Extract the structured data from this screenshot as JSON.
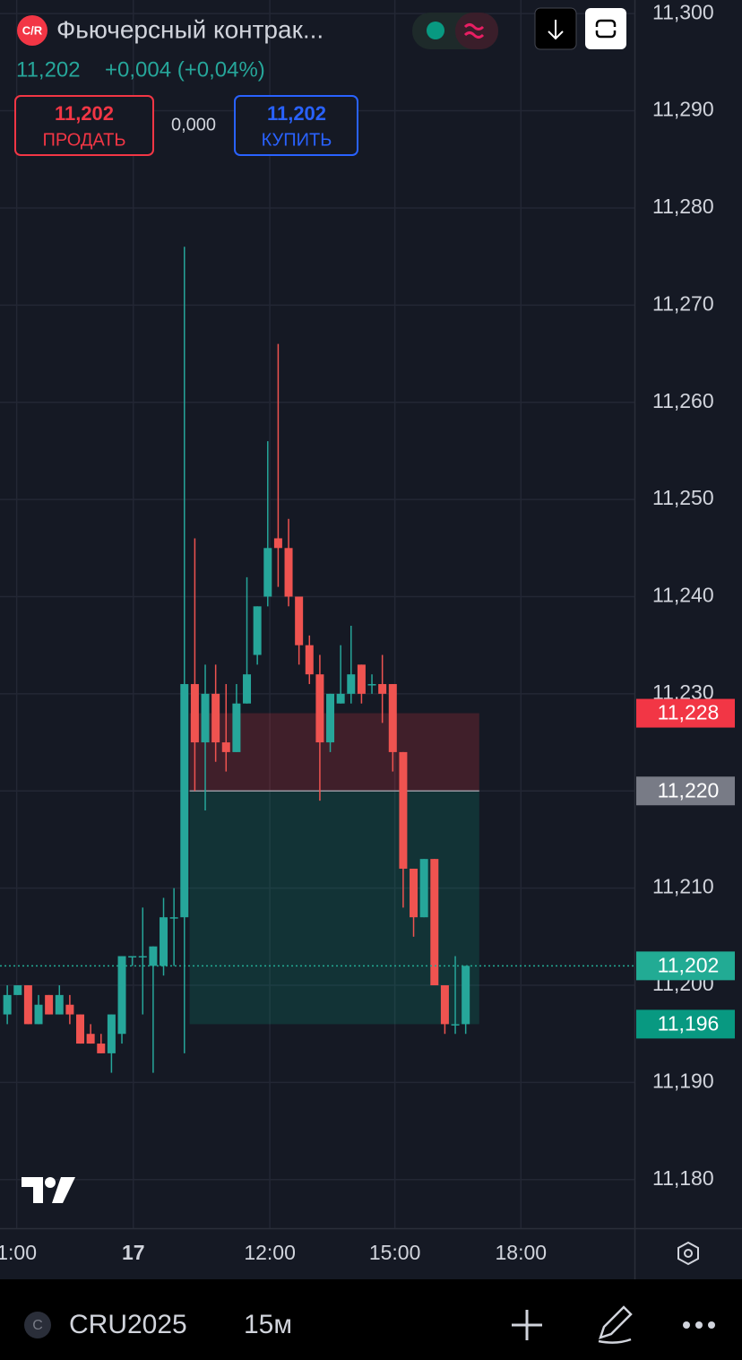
{
  "header": {
    "logo": "C/R",
    "symbol": "Фьючерсный контрак...",
    "last_price": "11,202",
    "change": "+0,004 (+0,04%)",
    "sell": {
      "price": "11,202",
      "label": "ПРОДАТЬ"
    },
    "spread": "0,000",
    "buy": {
      "price": "11,202",
      "label": "КУПИТЬ"
    }
  },
  "toolbar": {
    "exchange_icon": "C",
    "symbol": "CRU2025",
    "interval": "15м"
  },
  "chart_data": {
    "type": "candlestick",
    "up_color": "#26a69a",
    "down_color": "#ef5350",
    "grid": true,
    "ylim": [
      11.175,
      11.3014
    ],
    "xlim": [
      -0.7,
      60.2
    ],
    "yticks": [
      {
        "value": 11.3,
        "label": "11,300"
      },
      {
        "value": 11.29,
        "label": "11,290"
      },
      {
        "value": 11.28,
        "label": "11,280"
      },
      {
        "value": 11.27,
        "label": "11,270"
      },
      {
        "value": 11.26,
        "label": "11,260"
      },
      {
        "value": 11.25,
        "label": "11,250"
      },
      {
        "value": 11.24,
        "label": "11,240"
      },
      {
        "value": 11.23,
        "label": "11,230"
      },
      {
        "value": 11.22,
        "label": "11,220"
      },
      {
        "value": 11.21,
        "label": "11,210"
      },
      {
        "value": 11.2,
        "label": "11,200"
      },
      {
        "value": 11.19,
        "label": "11,190"
      },
      {
        "value": 11.18,
        "label": "11,180"
      }
    ],
    "xticks": [
      {
        "value": 0.9,
        "label": "1:00"
      },
      {
        "value": 12.1,
        "label": "17"
      },
      {
        "value": 25.2,
        "label": "12:00"
      },
      {
        "value": 37.2,
        "label": "15:00"
      },
      {
        "value": 49.3,
        "label": "18:00"
      }
    ],
    "open": [
      11.197,
      11.199,
      11.2,
      11.196,
      11.199,
      11.197,
      11.198,
      11.197,
      11.195,
      11.194,
      11.193,
      11.195,
      11.203,
      11.203,
      11.202,
      11.202,
      11.207,
      11.207,
      11.231,
      11.225,
      11.23,
      11.225,
      11.224,
      11.229,
      11.234,
      11.24,
      11.246,
      11.245,
      11.24,
      11.235,
      11.232,
      11.225,
      11.229,
      11.23,
      11.233,
      11.231,
      11.231,
      11.231,
      11.224,
      11.212,
      11.207,
      11.213,
      11.2,
      11.196,
      11.196
    ],
    "high": [
      11.2,
      11.2,
      11.2,
      11.199,
      11.199,
      11.2,
      11.199,
      11.197,
      11.196,
      11.195,
      11.197,
      11.203,
      11.203,
      11.208,
      11.204,
      11.209,
      11.21,
      11.276,
      11.246,
      11.233,
      11.233,
      11.231,
      11.231,
      11.242,
      11.239,
      11.256,
      11.266,
      11.248,
      11.24,
      11.236,
      11.234,
      11.23,
      11.235,
      11.237,
      11.233,
      11.232,
      11.234,
      11.231,
      11.224,
      11.212,
      11.213,
      11.213,
      11.2,
      11.203,
      11.202
    ],
    "low": [
      11.196,
      11.199,
      11.196,
      11.196,
      11.197,
      11.197,
      11.196,
      11.194,
      11.194,
      11.193,
      11.191,
      11.194,
      11.202,
      11.197,
      11.191,
      11.201,
      11.202,
      11.193,
      11.22,
      11.218,
      11.223,
      11.222,
      11.224,
      11.229,
      11.233,
      11.239,
      11.241,
      11.239,
      11.233,
      11.231,
      11.219,
      11.224,
      11.229,
      11.229,
      11.229,
      11.23,
      11.227,
      11.222,
      11.208,
      11.205,
      11.207,
      11.2,
      11.195,
      11.195,
      11.195
    ],
    "close": [
      11.199,
      11.2,
      11.196,
      11.198,
      11.197,
      11.199,
      11.197,
      11.194,
      11.194,
      11.193,
      11.197,
      11.203,
      11.203,
      11.203,
      11.204,
      11.207,
      11.207,
      11.231,
      11.225,
      11.23,
      11.225,
      11.224,
      11.229,
      11.232,
      11.239,
      11.245,
      11.245,
      11.24,
      11.235,
      11.232,
      11.225,
      11.23,
      11.23,
      11.232,
      11.23,
      11.231,
      11.23,
      11.224,
      11.212,
      11.207,
      11.213,
      11.2,
      11.196,
      11.196,
      11.202
    ],
    "position": {
      "start": 17.5,
      "end": 45.3,
      "stop": {
        "value": 11.228,
        "label": "11,228"
      },
      "entry": {
        "value": 11.22,
        "label": "11,220"
      },
      "target": {
        "value": 11.196,
        "label": "11,196"
      }
    },
    "last_price": {
      "value": 11.202,
      "label": "11,202"
    }
  }
}
